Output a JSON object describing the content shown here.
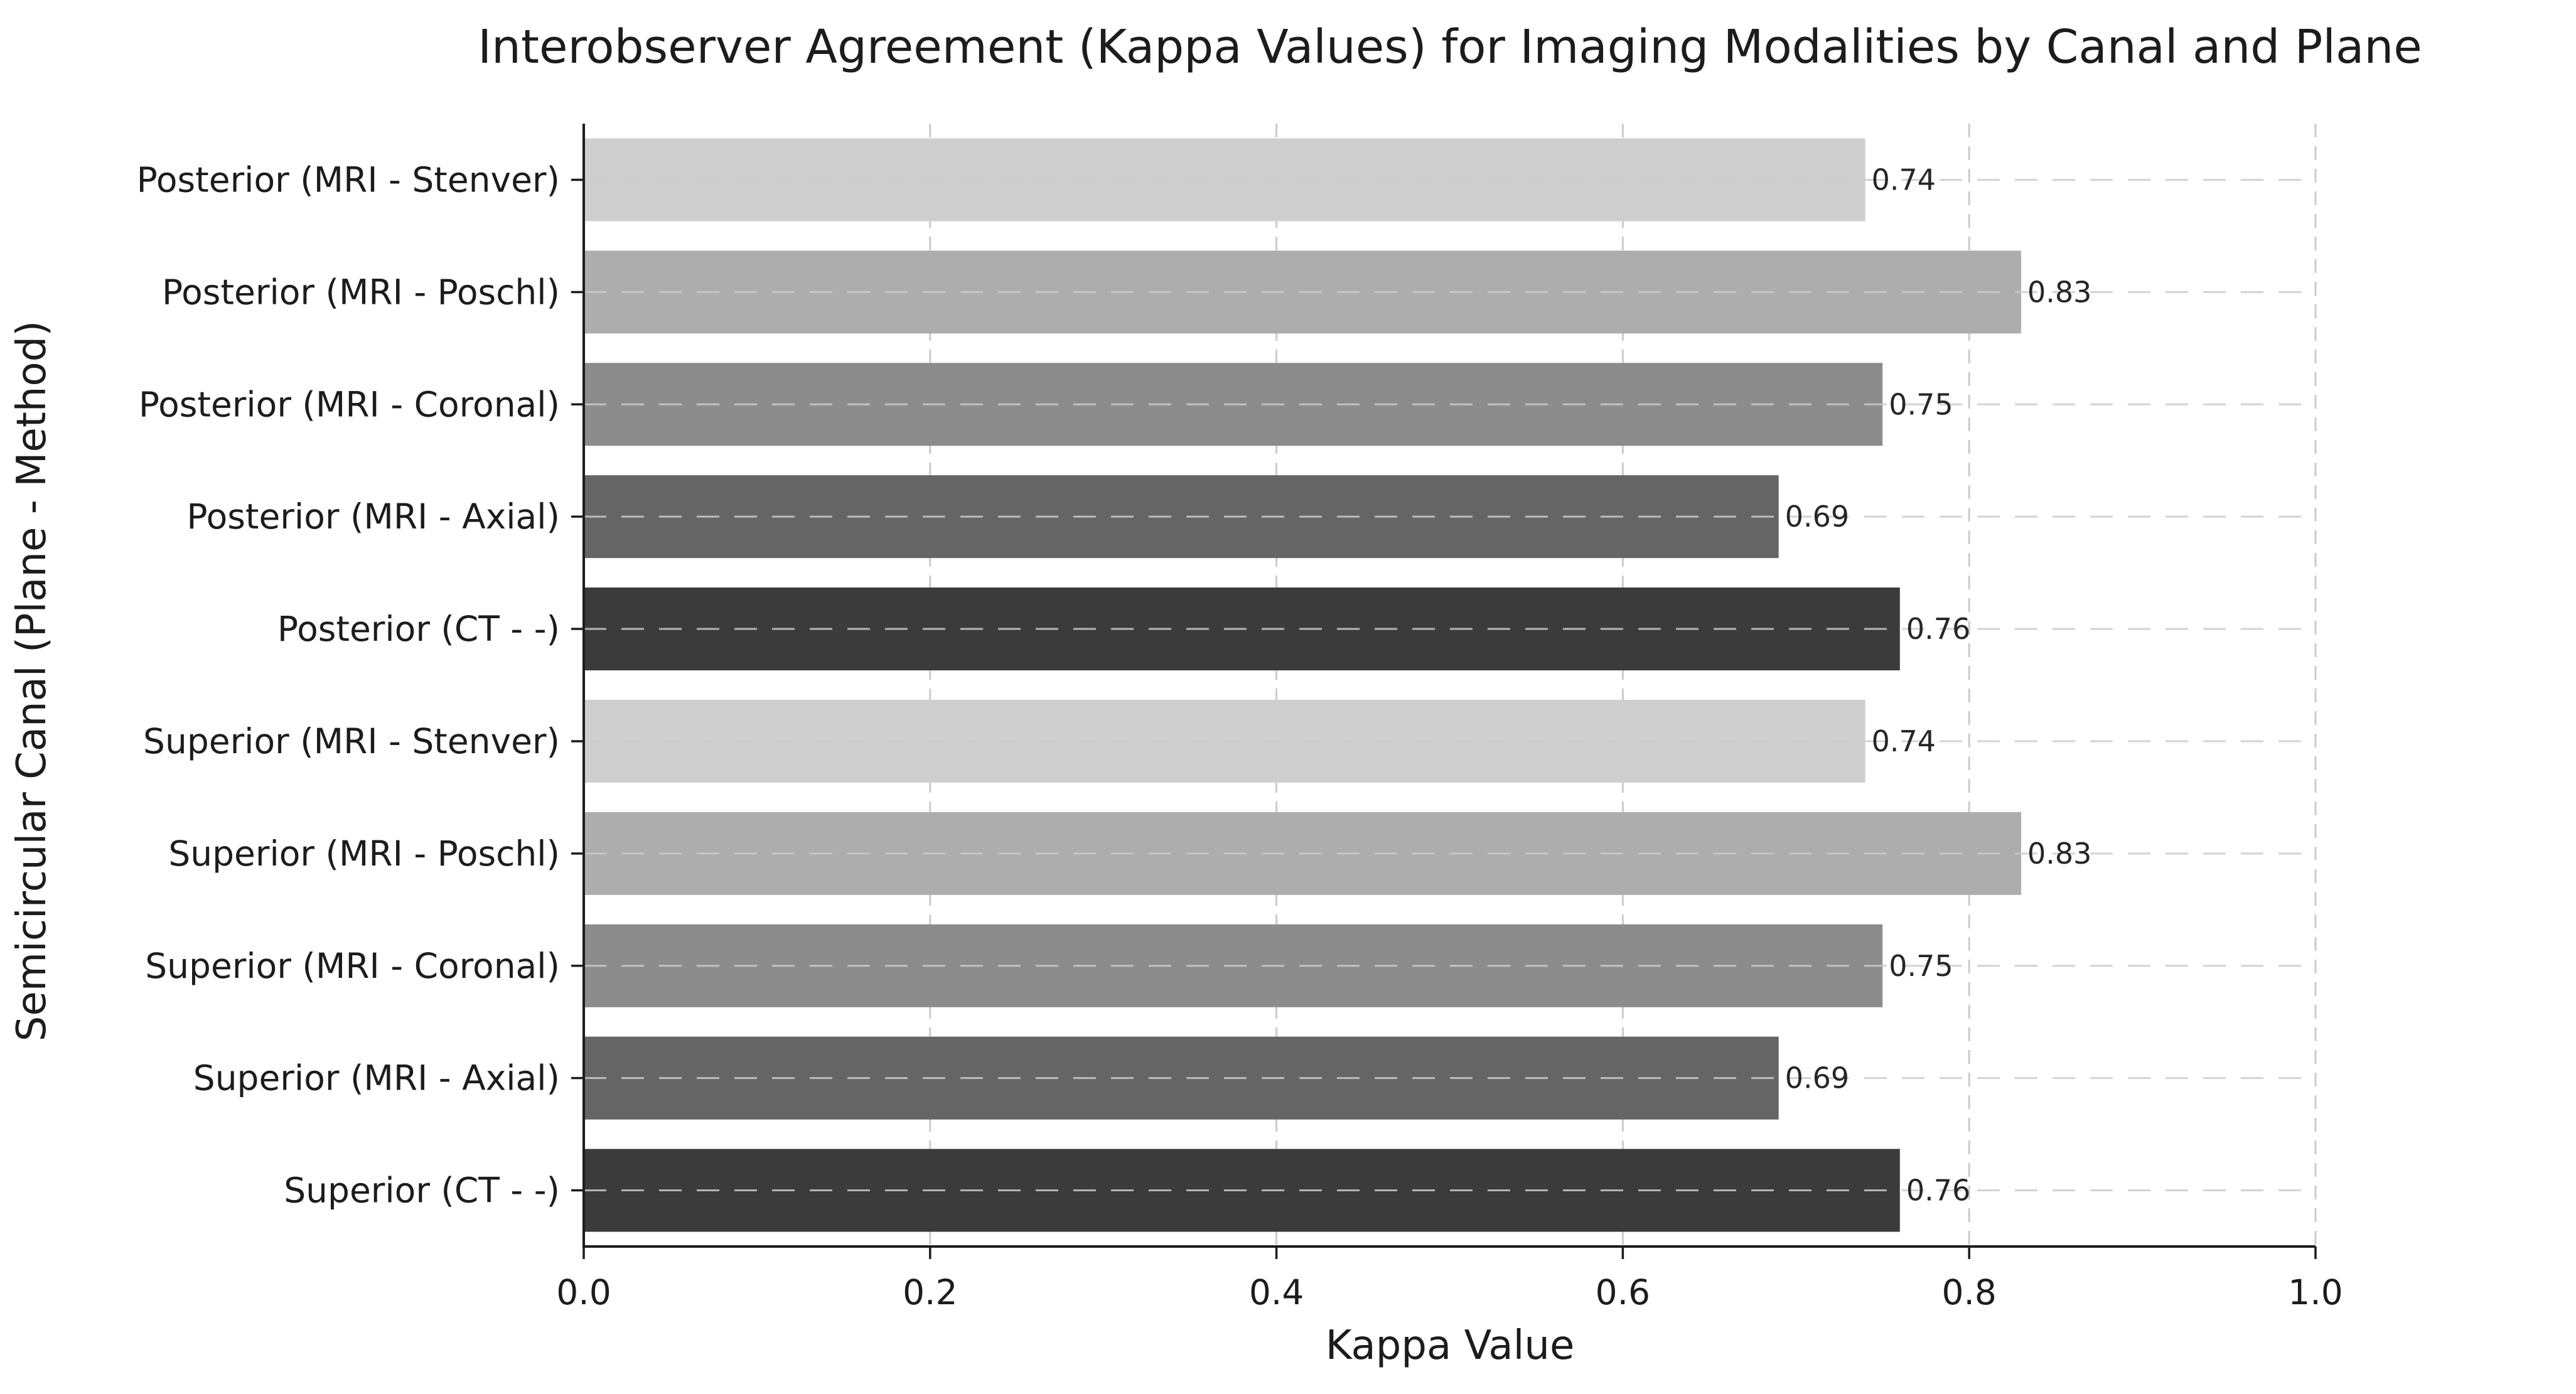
{
  "figure": {
    "background": "#ffffff"
  },
  "chart_data": {
    "type": "bar",
    "orientation": "horizontal",
    "title": "Interobserver Agreement (Kappa Values) for Imaging Modalities by Canal and Plane",
    "xlabel": "Kappa Value",
    "ylabel": "Semicircular Canal (Plane - Method)",
    "categories": [
      "Posterior (MRI - Stenver)",
      "Posterior (MRI - Poschl)",
      "Posterior (MRI - Coronal)",
      "Posterior (MRI - Axial)",
      "Posterior (CT - -)",
      "Superior (MRI - Stenver)",
      "Superior (MRI - Poschl)",
      "Superior (MRI - Coronal)",
      "Superior (MRI - Axial)",
      "Superior (CT - -)"
    ],
    "values": [
      0.74,
      0.83,
      0.75,
      0.69,
      0.76,
      0.74,
      0.83,
      0.75,
      0.69,
      0.76
    ],
    "value_labels": [
      "0.74",
      "0.83",
      "0.75",
      "0.69",
      "0.76",
      "0.74",
      "0.83",
      "0.75",
      "0.69",
      "0.76"
    ],
    "xlim": [
      0.0,
      1.0
    ],
    "xticks": [
      "0.0",
      "0.2",
      "0.4",
      "0.6",
      "0.8",
      "1.0"
    ],
    "xtick_values": [
      0.0,
      0.2,
      0.4,
      0.6,
      0.8,
      1.0
    ],
    "grid": "dashed",
    "legend": "none",
    "bar_colors_cycle": [
      "#cecece",
      "#adadad",
      "#8c8c8c",
      "#656565",
      "#3b3b3b"
    ],
    "colors": {
      "text": "#1c1c1c",
      "value_text": "#262626",
      "grid": "#cbcbcb",
      "spine": "#1c1c1c",
      "background": "#ffffff"
    }
  }
}
